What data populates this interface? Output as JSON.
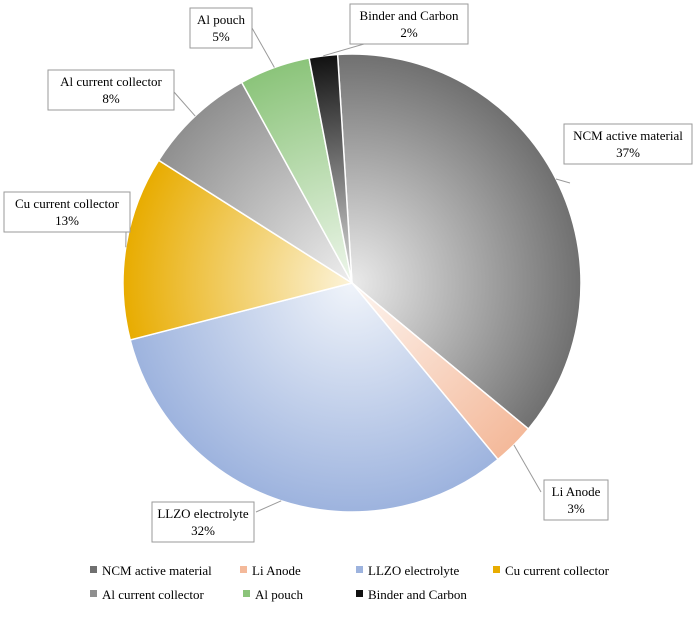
{
  "chart_data": {
    "type": "pie",
    "title": "",
    "start_angle_deg": -3.6,
    "direction": "clockwise",
    "legend_position": "bottom",
    "slices": [
      {
        "name": "NCM active material",
        "value": 37,
        "label": "37%",
        "color": "#707070"
      },
      {
        "name": "Li Anode",
        "value": 3,
        "label": "3%",
        "color": "#f4b99a"
      },
      {
        "name": "LLZO electrolyte",
        "value": 32,
        "label": "32%",
        "color": "#9db3de"
      },
      {
        "name": "Cu current collector",
        "value": 13,
        "label": "13%",
        "color": "#e8ac00"
      },
      {
        "name": "Al current collector",
        "value": 8,
        "label": "8%",
        "color": "#8f8f8f"
      },
      {
        "name": "Al pouch",
        "value": 5,
        "label": "5%",
        "color": "#8bc47a"
      },
      {
        "name": "Binder and Carbon",
        "value": 2,
        "label": "2%",
        "color": "#111111"
      }
    ]
  }
}
